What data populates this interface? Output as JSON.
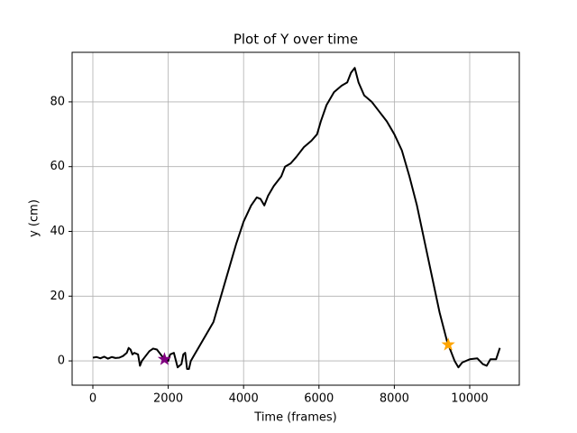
{
  "chart_data": {
    "type": "line",
    "title": "Plot of Y over time",
    "x_label": "Time (frames)",
    "y_label": "y (cm)",
    "xlim": [
      -550,
      11316
    ],
    "ylim": [
      -7.5,
      95.3
    ],
    "xticks": [
      0,
      2000,
      4000,
      6000,
      8000,
      10000
    ],
    "yticks": [
      0,
      20,
      40,
      60,
      80
    ],
    "grid": true,
    "series": [
      {
        "color": "#000000",
        "x": [
          0,
          100,
          200,
          300,
          400,
          500,
          600,
          700,
          800,
          900,
          950,
          1000,
          1050,
          1100,
          1200,
          1250,
          1300,
          1400,
          1500,
          1600,
          1700,
          1800,
          1900,
          2000,
          2050,
          2150,
          2250,
          2350,
          2400,
          2450,
          2500,
          2550,
          2600,
          2700,
          2800,
          3000,
          3200,
          3400,
          3600,
          3800,
          4000,
          4200,
          4350,
          4450,
          4550,
          4650,
          4800,
          5000,
          5100,
          5250,
          5400,
          5600,
          5800,
          5950,
          6050,
          6200,
          6400,
          6600,
          6750,
          6850,
          6950,
          7050,
          7200,
          7400,
          7600,
          7800,
          8000,
          8200,
          8400,
          8600,
          8800,
          9000,
          9200,
          9400,
          9500,
          9600,
          9700,
          9800,
          10000,
          10200,
          10350,
          10450,
          10550,
          10700,
          10800
        ],
        "values": [
          1,
          1.2,
          0.8,
          1.3,
          0.7,
          1.2,
          0.9,
          1,
          1.5,
          2.5,
          4,
          3.5,
          2,
          2.5,
          2,
          -1.5,
          0,
          1.5,
          3,
          3.8,
          3.5,
          2,
          0.5,
          0,
          2,
          2.5,
          -2,
          -1,
          2,
          2.5,
          -2.5,
          -2.5,
          0,
          2,
          4,
          8,
          12,
          20,
          28,
          36,
          43,
          48,
          50.5,
          50,
          48,
          51,
          54,
          57,
          60,
          61,
          63,
          66,
          68,
          70,
          74,
          79,
          83,
          85,
          86,
          89,
          90.5,
          86,
          82,
          80,
          77,
          74,
          70,
          65,
          57,
          48,
          37,
          26,
          15,
          6,
          3,
          0,
          -2,
          -0.5,
          0.5,
          0.8,
          -1,
          -1.5,
          0.5,
          0.5,
          4
        ]
      }
    ],
    "markers": [
      {
        "x": 1900,
        "y": 0.5,
        "color": "#800080",
        "shape": "star"
      },
      {
        "x": 9430,
        "y": 5,
        "color": "#ffa500",
        "shape": "star"
      }
    ]
  }
}
